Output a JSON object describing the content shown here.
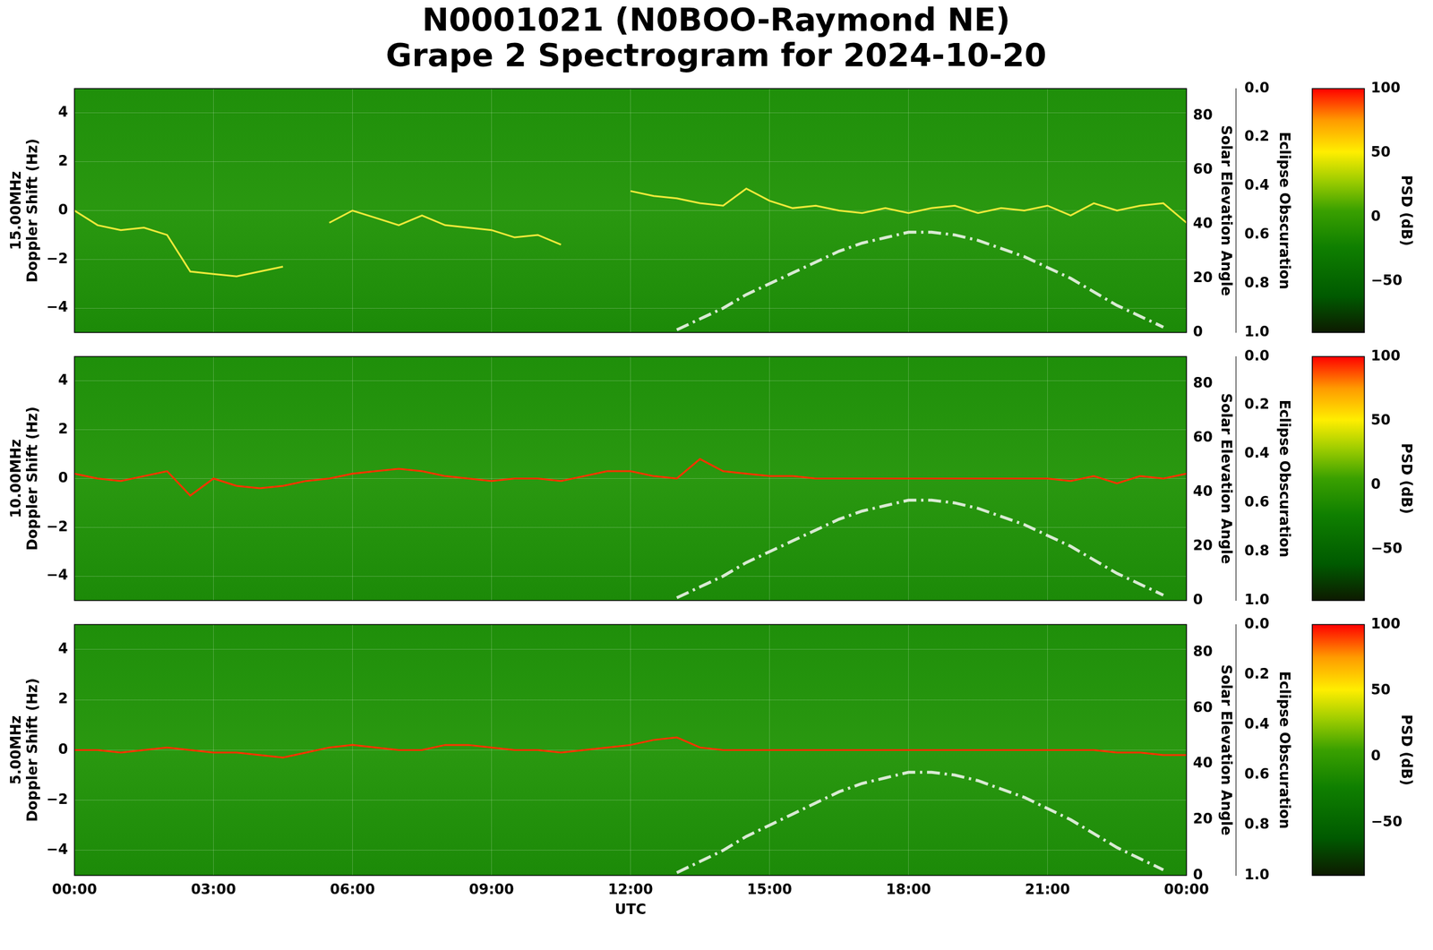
{
  "title": [
    "N0001021 (N0BOO-Raymond NE)",
    "Grape 2 Spectrogram for 2024-10-20"
  ],
  "chart_data": [
    {
      "type": "line",
      "ylabel": [
        "15.00MHz",
        "Doppler Shift (Hz)"
      ],
      "grid": true,
      "tick_labels": "y",
      "xlim": [
        0,
        24
      ],
      "xticks": [
        {
          "value": 0,
          "label": "00:00"
        },
        {
          "value": 3,
          "label": "03:00"
        },
        {
          "value": 6,
          "label": "06:00"
        },
        {
          "value": 9,
          "label": "09:00"
        },
        {
          "value": 12,
          "label": "12:00"
        },
        {
          "value": 15,
          "label": "15:00"
        },
        {
          "value": 18,
          "label": "18:00"
        },
        {
          "value": 21,
          "label": "21:00"
        },
        {
          "value": 24,
          "label": "00:00"
        }
      ],
      "ylim": [
        -5,
        5
      ],
      "yticks": [
        {
          "value": -4,
          "label": "−4"
        },
        {
          "value": -2,
          "label": "−2"
        },
        0,
        2,
        4
      ],
      "y2label": "Solar Elevation Angle",
      "y2lim": [
        0,
        90
      ],
      "y2ticks": [
        0,
        20,
        40,
        60,
        80
      ],
      "eclipse_label": "Eclipse Obscuration",
      "eclipse_lim": [
        0,
        1
      ],
      "eclipse_ticks": [
        {
          "value": 0,
          "label": "0.0"
        },
        0.2,
        0.4,
        0.6,
        0.8,
        {
          "value": 1,
          "label": "1.0"
        }
      ],
      "colorbar": {
        "label": "PSD (dB)",
        "lim": [
          -90,
          100
        ],
        "ticks": [
          {
            "value": -50,
            "label": "−50"
          },
          0,
          50,
          100
        ]
      },
      "x": [
        0,
        0.5,
        1,
        1.5,
        2,
        2.5,
        3,
        3.5,
        4,
        4.5,
        5,
        5.5,
        6,
        6.5,
        7,
        7.5,
        8,
        8.5,
        9,
        9.5,
        10,
        10.5,
        11,
        11.5,
        12,
        12.5,
        13,
        13.5,
        14,
        14.5,
        15,
        15.5,
        16,
        16.5,
        17,
        17.5,
        18,
        18.5,
        19,
        19.5,
        20,
        20.5,
        21,
        21.5,
        22,
        22.5,
        23,
        23.5,
        24
      ],
      "series": [
        {
          "color": "#f0ea3a",
          "line_style": "solid",
          "values": [
            0.0,
            -0.6,
            -0.8,
            -0.7,
            -1.0,
            -2.5,
            -2.6,
            -2.7,
            -2.5,
            -2.3,
            null,
            -0.5,
            0.0,
            -0.3,
            -0.6,
            -0.2,
            -0.6,
            -0.7,
            -0.8,
            -1.1,
            -1.0,
            -1.4,
            null,
            null,
            0.8,
            0.6,
            0.5,
            0.3,
            0.2,
            0.9,
            0.4,
            0.1,
            0.2,
            0.0,
            -0.1,
            0.1,
            -0.1,
            0.1,
            0.2,
            -0.1,
            0.1,
            0.0,
            0.2,
            -0.2,
            0.3,
            0.0,
            0.2,
            0.3,
            -0.5
          ]
        },
        {
          "color": "#d9ead3",
          "line_style": "dashdot",
          "axis": "y2",
          "values": [
            null,
            null,
            null,
            null,
            null,
            null,
            null,
            null,
            null,
            null,
            null,
            null,
            null,
            null,
            null,
            null,
            null,
            null,
            null,
            null,
            null,
            null,
            null,
            null,
            null,
            null,
            1,
            5,
            9,
            14,
            18,
            22,
            26,
            30,
            33,
            35,
            37,
            37,
            36,
            34,
            31,
            28,
            24,
            20,
            15,
            10,
            6,
            2,
            null
          ]
        }
      ]
    },
    {
      "type": "line",
      "ylabel": [
        "10.00MHz",
        "Doppler Shift (Hz)"
      ],
      "grid": true,
      "tick_labels": "y",
      "xlim": [
        0,
        24
      ],
      "xticks": [
        {
          "value": 0,
          "label": "00:00"
        },
        {
          "value": 3,
          "label": "03:00"
        },
        {
          "value": 6,
          "label": "06:00"
        },
        {
          "value": 9,
          "label": "09:00"
        },
        {
          "value": 12,
          "label": "12:00"
        },
        {
          "value": 15,
          "label": "15:00"
        },
        {
          "value": 18,
          "label": "18:00"
        },
        {
          "value": 21,
          "label": "21:00"
        },
        {
          "value": 24,
          "label": "00:00"
        }
      ],
      "ylim": [
        -5,
        5
      ],
      "yticks": [
        {
          "value": -4,
          "label": "−4"
        },
        {
          "value": -2,
          "label": "−2"
        },
        0,
        2,
        4
      ],
      "y2label": "Solar Elevation Angle",
      "y2lim": [
        0,
        90
      ],
      "y2ticks": [
        0,
        20,
        40,
        60,
        80
      ],
      "eclipse_label": "Eclipse Obscuration",
      "eclipse_lim": [
        0,
        1
      ],
      "eclipse_ticks": [
        {
          "value": 0,
          "label": "0.0"
        },
        0.2,
        0.4,
        0.6,
        0.8,
        {
          "value": 1,
          "label": "1.0"
        }
      ],
      "colorbar": {
        "label": "PSD (dB)",
        "lim": [
          -90,
          100
        ],
        "ticks": [
          {
            "value": -50,
            "label": "−50"
          },
          0,
          50,
          100
        ]
      },
      "x": [
        0,
        0.5,
        1,
        1.5,
        2,
        2.5,
        3,
        3.5,
        4,
        4.5,
        5,
        5.5,
        6,
        6.5,
        7,
        7.5,
        8,
        8.5,
        9,
        9.5,
        10,
        10.5,
        11,
        11.5,
        12,
        12.5,
        13,
        13.5,
        14,
        14.5,
        15,
        15.5,
        16,
        16.5,
        17,
        17.5,
        18,
        18.5,
        19,
        19.5,
        20,
        20.5,
        21,
        21.5,
        22,
        22.5,
        23,
        23.5,
        24
      ],
      "series": [
        {
          "color": "#ff3300",
          "line_style": "solid",
          "values": [
            0.2,
            0.0,
            -0.1,
            0.1,
            0.3,
            -0.7,
            0.0,
            -0.3,
            -0.4,
            -0.3,
            -0.1,
            0.0,
            0.2,
            0.3,
            0.4,
            0.3,
            0.1,
            0.0,
            -0.1,
            0.0,
            0.0,
            -0.1,
            0.1,
            0.3,
            0.3,
            0.1,
            0.0,
            0.8,
            0.3,
            0.2,
            0.1,
            0.1,
            0.0,
            0.0,
            0.0,
            0.0,
            0.0,
            0.0,
            0.0,
            0.0,
            0.0,
            0.0,
            0.0,
            -0.1,
            0.1,
            -0.2,
            0.1,
            0.0,
            0.2
          ]
        },
        {
          "color": "#d9ead3",
          "line_style": "dashdot",
          "axis": "y2",
          "values": [
            null,
            null,
            null,
            null,
            null,
            null,
            null,
            null,
            null,
            null,
            null,
            null,
            null,
            null,
            null,
            null,
            null,
            null,
            null,
            null,
            null,
            null,
            null,
            null,
            null,
            null,
            1,
            5,
            9,
            14,
            18,
            22,
            26,
            30,
            33,
            35,
            37,
            37,
            36,
            34,
            31,
            28,
            24,
            20,
            15,
            10,
            6,
            2,
            null
          ]
        }
      ]
    },
    {
      "type": "line",
      "ylabel": [
        "5.00MHz",
        "Doppler Shift (Hz)"
      ],
      "xlabel": "UTC",
      "grid": true,
      "xlim": [
        0,
        24
      ],
      "xticks": [
        {
          "value": 0,
          "label": "00:00"
        },
        {
          "value": 3,
          "label": "03:00"
        },
        {
          "value": 6,
          "label": "06:00"
        },
        {
          "value": 9,
          "label": "09:00"
        },
        {
          "value": 12,
          "label": "12:00"
        },
        {
          "value": 15,
          "label": "15:00"
        },
        {
          "value": 18,
          "label": "18:00"
        },
        {
          "value": 21,
          "label": "21:00"
        },
        {
          "value": 24,
          "label": "00:00"
        }
      ],
      "ylim": [
        -5,
        5
      ],
      "yticks": [
        {
          "value": -4,
          "label": "−4"
        },
        {
          "value": -2,
          "label": "−2"
        },
        0,
        2,
        4
      ],
      "y2label": "Solar Elevation Angle",
      "y2lim": [
        0,
        90
      ],
      "y2ticks": [
        0,
        20,
        40,
        60,
        80
      ],
      "eclipse_label": "Eclipse Obscuration",
      "eclipse_lim": [
        0,
        1
      ],
      "eclipse_ticks": [
        {
          "value": 0,
          "label": "0.0"
        },
        0.2,
        0.4,
        0.6,
        0.8,
        {
          "value": 1,
          "label": "1.0"
        }
      ],
      "colorbar": {
        "label": "PSD (dB)",
        "lim": [
          -90,
          100
        ],
        "ticks": [
          {
            "value": -50,
            "label": "−50"
          },
          0,
          50,
          100
        ]
      },
      "x": [
        0,
        0.5,
        1,
        1.5,
        2,
        2.5,
        3,
        3.5,
        4,
        4.5,
        5,
        5.5,
        6,
        6.5,
        7,
        7.5,
        8,
        8.5,
        9,
        9.5,
        10,
        10.5,
        11,
        11.5,
        12,
        12.5,
        13,
        13.5,
        14,
        14.5,
        15,
        15.5,
        16,
        16.5,
        17,
        17.5,
        18,
        18.5,
        19,
        19.5,
        20,
        20.5,
        21,
        21.5,
        22,
        22.5,
        23,
        23.5,
        24
      ],
      "series": [
        {
          "color": "#ff3300",
          "line_style": "solid",
          "values": [
            0.0,
            0.0,
            -0.1,
            0.0,
            0.1,
            0.0,
            -0.1,
            -0.1,
            -0.2,
            -0.3,
            -0.1,
            0.1,
            0.2,
            0.1,
            0.0,
            0.0,
            0.2,
            0.2,
            0.1,
            0.0,
            0.0,
            -0.1,
            0.0,
            0.1,
            0.2,
            0.4,
            0.5,
            0.1,
            0.0,
            0.0,
            0.0,
            0.0,
            0.0,
            0.0,
            0.0,
            0.0,
            0.0,
            0.0,
            0.0,
            0.0,
            0.0,
            0.0,
            0.0,
            0.0,
            0.0,
            -0.1,
            -0.1,
            -0.2,
            -0.2
          ]
        },
        {
          "color": "#d9ead3",
          "line_style": "dashdot",
          "axis": "y2",
          "values": [
            null,
            null,
            null,
            null,
            null,
            null,
            null,
            null,
            null,
            null,
            null,
            null,
            null,
            null,
            null,
            null,
            null,
            null,
            null,
            null,
            null,
            null,
            null,
            null,
            null,
            null,
            1,
            5,
            9,
            14,
            18,
            22,
            26,
            30,
            33,
            35,
            37,
            37,
            36,
            34,
            31,
            28,
            24,
            20,
            15,
            10,
            6,
            2,
            null
          ]
        }
      ]
    }
  ]
}
